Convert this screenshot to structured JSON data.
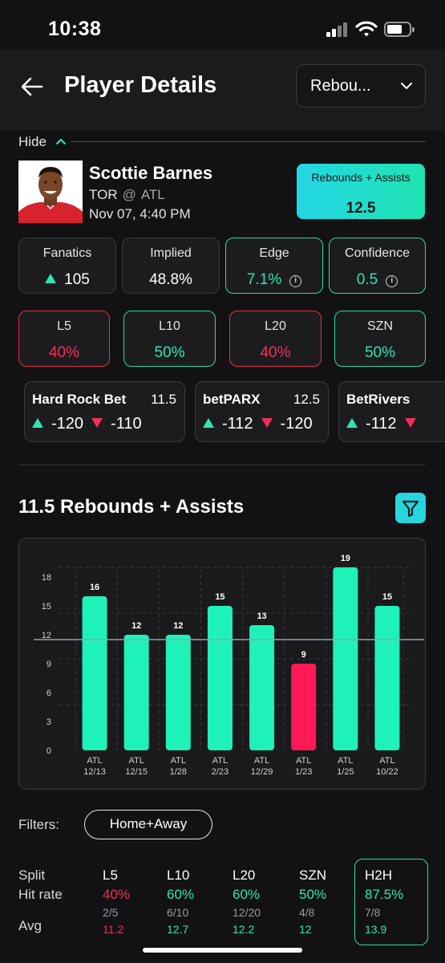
{
  "status_bar": {
    "time": "10:38"
  },
  "header": {
    "title": "Player Details",
    "stat_dropdown": "Rebou..."
  },
  "hide": {
    "label": "Hide"
  },
  "player": {
    "name": "Scottie Barnes",
    "team": "TOR",
    "at": "@",
    "opponent": "ATL",
    "game_time": "Nov 07, 4:40 PM",
    "prop_stat": "Rebounds + Assists",
    "prop_line": "12.5"
  },
  "metrics": [
    {
      "label": "Fanatics",
      "value": "105",
      "arrow": "up",
      "style": "neutral"
    },
    {
      "label": "Implied",
      "value": "48.8%",
      "style": "neutral"
    },
    {
      "label": "Edge",
      "value": "7.1%",
      "info": true,
      "style": "green"
    },
    {
      "label": "Confidence",
      "value": "0.5",
      "info": true,
      "style": "green"
    }
  ],
  "hit_rates": [
    {
      "label": "L5",
      "value": "40%",
      "style": "red"
    },
    {
      "label": "L10",
      "value": "50%",
      "style": "green"
    },
    {
      "label": "L20",
      "value": "40%",
      "style": "red"
    },
    {
      "label": "SZN",
      "value": "50%",
      "style": "green"
    }
  ],
  "books": [
    {
      "name": "Hard Rock Bet",
      "line": "11.5",
      "over": "-120",
      "under": "-110"
    },
    {
      "name": "betPARX",
      "line": "12.5",
      "over": "-112",
      "under": "-120"
    },
    {
      "name": "BetRivers",
      "line": "",
      "over": "-112",
      "under": ""
    }
  ],
  "chart_title": "11.5 Rebounds + Assists",
  "chart_data": {
    "type": "bar",
    "categories": [
      "ATL 12/13",
      "ATL 12/15",
      "ATL 1/28",
      "ATL 2/23",
      "ATL 12/29",
      "ATL 1/23",
      "ATL 1/25",
      "ATL 10/22"
    ],
    "x_top": [
      "ATL",
      "ATL",
      "ATL",
      "ATL",
      "ATL",
      "ATL",
      "ATL",
      "ATL"
    ],
    "x_bottom": [
      "12/13",
      "12/15",
      "1/28",
      "2/23",
      "12/29",
      "1/23",
      "1/25",
      "10/22"
    ],
    "values": [
      16,
      12,
      12,
      15,
      13,
      9,
      19,
      15
    ],
    "value_labels": [
      "16",
      "12",
      "12",
      "15",
      "13",
      "9",
      "19",
      "15"
    ],
    "line": 11.5,
    "yticks": [
      0,
      3,
      6,
      9,
      12,
      15,
      18
    ],
    "ytick_labels": [
      "0",
      "3",
      "6",
      "9",
      "12",
      "15",
      "18"
    ],
    "ylim": [
      0,
      20
    ],
    "hit_color": "#1ff2b8",
    "miss_color": "#ff1a55"
  },
  "filters": {
    "label": "Filters:",
    "location": "Home+Away"
  },
  "split": {
    "row_labels": {
      "split": "Split",
      "hit_rate": "Hit rate",
      "avg": "Avg"
    },
    "columns": [
      {
        "label": "L5",
        "rate": "40%",
        "fraction": "2/5",
        "avg": "11.2",
        "style": "red"
      },
      {
        "label": "L10",
        "rate": "60%",
        "fraction": "6/10",
        "avg": "12.7",
        "style": "green"
      },
      {
        "label": "L20",
        "rate": "60%",
        "fraction": "12/20",
        "avg": "12.2",
        "style": "green"
      },
      {
        "label": "SZN",
        "rate": "50%",
        "fraction": "4/8",
        "avg": "12",
        "style": "green"
      },
      {
        "label": "H2H",
        "rate": "87.5%",
        "fraction": "7/8",
        "avg": "13.9",
        "style": "green",
        "selected": true
      }
    ]
  }
}
